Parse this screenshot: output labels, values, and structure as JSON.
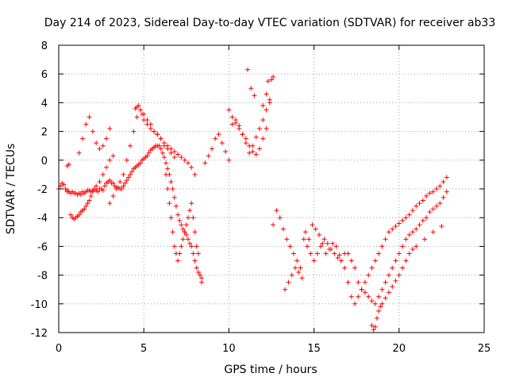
{
  "chart_data": {
    "type": "scatter",
    "title": "Day 214 of 2023, Sidereal Day-to-day VTEC variation (SDTVAR) for receiver ab33",
    "xlabel": "GPS time / hours",
    "ylabel": "SDTVAR / TECUs",
    "xlim": [
      0,
      25
    ],
    "ylim": [
      -12,
      8
    ],
    "xticks": [
      0,
      5,
      10,
      15,
      20,
      25
    ],
    "yticks": [
      -12,
      -10,
      -8,
      -6,
      -4,
      -2,
      0,
      2,
      4,
      6,
      8
    ],
    "xtick_labels": [
      "0",
      "5",
      "10",
      "15",
      "20",
      "25"
    ],
    "ytick_labels": [
      "-12",
      "-10",
      "-8",
      "-6",
      "-4",
      "-2",
      "0",
      "2",
      "4",
      "6",
      "8"
    ],
    "grid": true,
    "marker": "plus",
    "color": "#ff0000",
    "series": [
      {
        "x": [
          0.0,
          0.1,
          0.2,
          0.3,
          0.4,
          0.5,
          0.5,
          0.6,
          0.7,
          0.8,
          0.9,
          1.0,
          1.1,
          1.2,
          1.3,
          1.4,
          1.5,
          1.6,
          1.7,
          1.8,
          1.9,
          2.0,
          2.1,
          2.2,
          2.3,
          2.4,
          2.5,
          2.6,
          2.7,
          2.8,
          2.9,
          3.0,
          3.1,
          3.2,
          3.3,
          3.4,
          3.5,
          3.6,
          3.7,
          3.8,
          3.9,
          4.0,
          4.1,
          4.2,
          4.3,
          4.4,
          4.5,
          4.6,
          4.7,
          4.8,
          4.9,
          5.0,
          5.1,
          5.2,
          5.3,
          5.4,
          5.5,
          5.6,
          5.7,
          5.8,
          5.9,
          6.0,
          6.1,
          6.2,
          6.3,
          6.4,
          6.5,
          6.6,
          6.7,
          6.8,
          6.9,
          7.0,
          7.1,
          7.2,
          7.3,
          7.4,
          7.5,
          7.6,
          7.7,
          7.8,
          7.9,
          8.0,
          8.1,
          8.2,
          8.3,
          8.4,
          0.5,
          0.6,
          0.7,
          0.8,
          0.9,
          1.0,
          1.1,
          1.2,
          1.3,
          1.4,
          1.5,
          1.6,
          1.7,
          1.8,
          1.9,
          2.0,
          2.1,
          2.2,
          2.4,
          2.6,
          2.8,
          3.0,
          3.2,
          1.2,
          1.4,
          1.6,
          1.8,
          2.0,
          2.2,
          2.4,
          2.6,
          2.8,
          3.0,
          3.0,
          3.2,
          3.4,
          3.6,
          3.8,
          4.0,
          4.2,
          4.4,
          4.6,
          4.8,
          5.0,
          5.2,
          5.4,
          5.6,
          5.8,
          6.0,
          6.2,
          6.4,
          6.6,
          6.8,
          4.5,
          4.6,
          4.7,
          4.8,
          4.9,
          5.0,
          5.2,
          5.4,
          5.6,
          5.8,
          6.0,
          6.2,
          6.4,
          6.6,
          6.8,
          7.0,
          7.2,
          7.4,
          7.6,
          7.8,
          8.0,
          6.3,
          6.4,
          6.5,
          6.6,
          6.7,
          6.8,
          6.9,
          7.0,
          7.1,
          7.2,
          7.3,
          7.4,
          7.5,
          7.6,
          7.7,
          7.8,
          7.9,
          8.0,
          8.1,
          8.2,
          8.4,
          8.6,
          8.8,
          9.0,
          9.2,
          9.4,
          9.6,
          9.8,
          10.0,
          10.2,
          10.4,
          10.6,
          10.8,
          11.0,
          11.2,
          11.4,
          11.6,
          11.8,
          12.0,
          12.2,
          12.4,
          10.0,
          10.2,
          10.4,
          10.6,
          10.8,
          11.0,
          11.2,
          11.4,
          11.6,
          11.8,
          12.0,
          12.2,
          12.4,
          12.6,
          11.1,
          11.3,
          11.5,
          12.0,
          12.2,
          12.3,
          12.5,
          12.6,
          12.8,
          13.0,
          13.2,
          13.4,
          13.6,
          13.8,
          14.0,
          14.2,
          14.4,
          14.6,
          14.8,
          15.0,
          15.2,
          15.4,
          15.6,
          15.8,
          16.0,
          16.2,
          16.4,
          16.6,
          16.8,
          13.3,
          13.5,
          13.7,
          13.9,
          14.1,
          14.3,
          14.5,
          14.7,
          14.9,
          15.1,
          15.3,
          15.5,
          15.7,
          15.9,
          16.1,
          16.3,
          16.5,
          16.6,
          16.8,
          17.0,
          17.2,
          17.4,
          17.6,
          17.8,
          18.0,
          18.2,
          18.4,
          18.6,
          18.8,
          19.0,
          19.2,
          19.4,
          19.6,
          19.8,
          20.0,
          20.2,
          20.4,
          20.6,
          20.8,
          21.0,
          21.2,
          21.4,
          21.6,
          21.8,
          22.0,
          22.2,
          22.4,
          22.6,
          22.8,
          17.0,
          17.2,
          17.4,
          17.6,
          17.8,
          18.0,
          18.2,
          18.4,
          18.6,
          18.8,
          19.0,
          19.2,
          19.4,
          19.6,
          19.8,
          20.0,
          20.2,
          20.4,
          20.6,
          20.8,
          21.0,
          21.2,
          21.4,
          21.6,
          21.8,
          22.0,
          22.2,
          22.4,
          22.6,
          22.8,
          18.4,
          18.5,
          18.6,
          18.7,
          18.8,
          18.9,
          19.0,
          19.2,
          19.4,
          19.6,
          19.8,
          20.0,
          20.2,
          20.4,
          20.6,
          20.8,
          21.0,
          21.5,
          22.0,
          22.5
        ],
        "y": [
          -2.0,
          -1.8,
          -1.6,
          -1.7,
          -2.0,
          -2.1,
          -2.2,
          -2.2,
          -2.3,
          -2.2,
          -2.3,
          -2.3,
          -2.4,
          -2.3,
          -2.4,
          -2.2,
          -2.3,
          -2.2,
          -2.1,
          -2.1,
          -2.2,
          -2.1,
          -2.0,
          -2.1,
          -2.2,
          -2.0,
          -2.0,
          -2.1,
          -1.8,
          -1.6,
          -1.5,
          -1.4,
          -1.6,
          -1.6,
          -1.8,
          -1.9,
          -1.9,
          -2.0,
          -2.0,
          -1.8,
          -1.6,
          -1.4,
          -1.2,
          -1.0,
          -0.8,
          -0.6,
          -0.5,
          -0.4,
          -0.3,
          -0.2,
          0.0,
          0.1,
          0.2,
          0.3,
          0.5,
          0.7,
          0.8,
          0.9,
          1.0,
          1.0,
          1.0,
          0.8,
          0.5,
          0.2,
          -0.2,
          -0.6,
          -1.0,
          -1.5,
          -2.0,
          -2.6,
          -3.2,
          -3.8,
          -4.2,
          -4.5,
          -4.8,
          -5.0,
          -5.2,
          -5.5,
          -5.8,
          -6.0,
          -6.5,
          -7.0,
          -7.5,
          -7.8,
          -8.0,
          -8.2,
          -0.4,
          -0.3,
          -3.8,
          -4.0,
          -4.1,
          -4.0,
          -3.9,
          -3.8,
          -3.6,
          -3.5,
          -3.4,
          -3.2,
          -3.0,
          -2.8,
          -2.5,
          -2.2,
          -2.0,
          -1.8,
          -1.5,
          -1.0,
          -0.5,
          0.0,
          0.3,
          0.5,
          1.5,
          2.5,
          3.0,
          2.0,
          1.2,
          0.8,
          1.0,
          1.5,
          2.2,
          -3.0,
          -2.5,
          -2.0,
          -1.5,
          -1.0,
          0.0,
          1.0,
          2.0,
          3.0,
          3.5,
          3.2,
          2.8,
          2.5,
          2.0,
          1.8,
          1.5,
          1.0,
          0.8,
          0.5,
          0.2,
          3.6,
          3.7,
          3.8,
          3.5,
          3.2,
          2.8,
          2.5,
          2.2,
          2.0,
          1.8,
          1.5,
          1.2,
          1.0,
          0.8,
          0.6,
          0.4,
          0.2,
          0.0,
          -0.2,
          -0.5,
          -1.0,
          -1.0,
          -2.0,
          -3.0,
          -4.0,
          -5.0,
          -6.0,
          -6.5,
          -7.0,
          -6.5,
          -6.0,
          -5.5,
          -5.0,
          -4.5,
          -4.0,
          -3.5,
          -3.0,
          -4.0,
          -5.0,
          -6.0,
          -6.5,
          -8.5,
          -0.2,
          0.3,
          0.8,
          1.5,
          1.8,
          1.2,
          0.6,
          0.0,
          2.5,
          2.8,
          2.4,
          1.8,
          1.2,
          0.5,
          1.0,
          1.6,
          2.2,
          2.8,
          3.5,
          4.0,
          3.5,
          3.0,
          2.6,
          2.2,
          1.8,
          1.5,
          1.0,
          0.6,
          0.4,
          0.8,
          1.5,
          2.2,
          4.2,
          5.8,
          6.3,
          5.0,
          4.5,
          3.8,
          4.6,
          5.5,
          5.6,
          -4.5,
          -3.5,
          -4.0,
          -4.8,
          -5.5,
          -6.0,
          -6.5,
          -7.0,
          -7.5,
          -5.5,
          -6.0,
          -6.5,
          -7.0,
          -6.5,
          -6.0,
          -5.5,
          -5.8,
          -6.2,
          -6.5,
          -6.8,
          -7.0,
          -6.5,
          -9.0,
          -8.5,
          -8.0,
          -7.5,
          -7.8,
          -8.2,
          -5.0,
          -5.5,
          -4.5,
          -4.8,
          -5.2,
          -5.8,
          -6.5,
          -6.2,
          -5.8,
          -6.0,
          -6.6,
          -7.0,
          -7.5,
          -8.5,
          -9.5,
          -10.0,
          -9.5,
          -9.0,
          -8.5,
          -8.0,
          -7.5,
          -7.0,
          -6.5,
          -6.0,
          -5.5,
          -5.0,
          -4.8,
          -4.6,
          -4.4,
          -4.2,
          -4.0,
          -3.8,
          -3.5,
          -3.2,
          -3.0,
          -2.8,
          -2.5,
          -2.3,
          -2.2,
          -2.0,
          -1.8,
          -1.5,
          -1.2,
          -6.5,
          -7.0,
          -7.5,
          -8.5,
          -9.0,
          -9.2,
          -9.5,
          -9.8,
          -10.0,
          -9.5,
          -9.0,
          -8.5,
          -8.0,
          -7.5,
          -7.0,
          -6.5,
          -6.0,
          -5.5,
          -5.2,
          -5.0,
          -4.8,
          -4.5,
          -4.2,
          -4.0,
          -3.6,
          -3.4,
          -3.2,
          -3.0,
          -2.6,
          -2.2,
          -11.5,
          -11.8,
          -11.6,
          -11.0,
          -10.5,
          -10.2,
          -10.0,
          -9.6,
          -9.2,
          -8.8,
          -8.4,
          -8.0,
          -7.5,
          -7.0,
          -6.5,
          -6.2,
          -6.0,
          -5.5,
          -5.0,
          -4.6
        ]
      }
    ]
  }
}
